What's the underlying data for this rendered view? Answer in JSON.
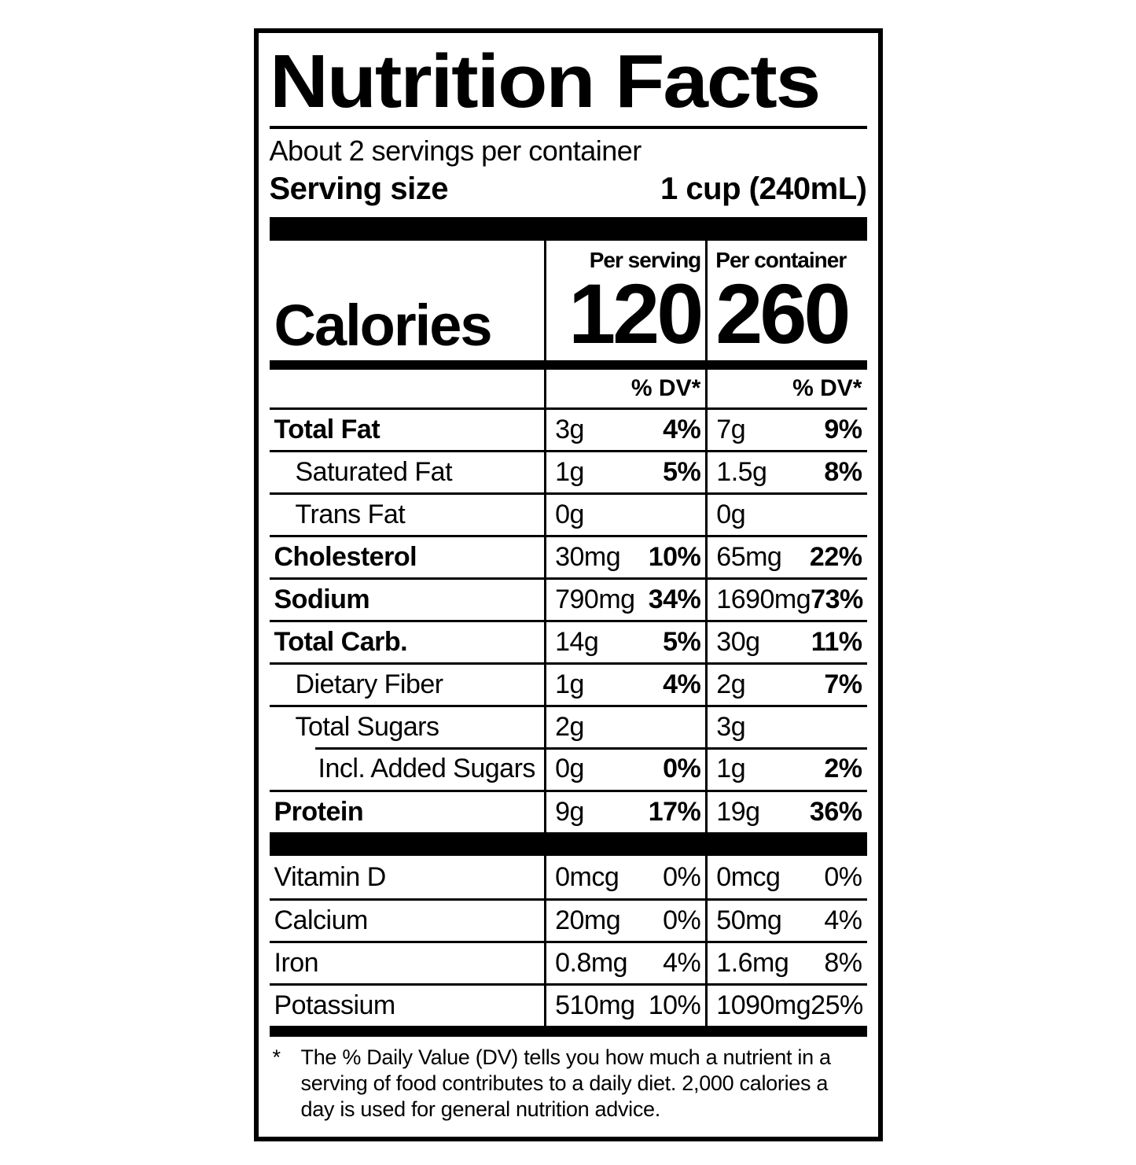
{
  "label": {
    "title": "Nutrition Facts",
    "servings_per_container": "About 2 servings per container",
    "serving_size": {
      "label": "Serving size",
      "value": "1 cup (240mL)"
    },
    "calories": {
      "label": "Calories",
      "per_serving_header": "Per serving",
      "per_container_header": "Per container",
      "per_serving": "120",
      "per_container": "260"
    },
    "dv_header": "% DV*",
    "rows": [
      {
        "name": "Total Fat",
        "serving_amount": "3g",
        "serving_dv": "4%",
        "container_amount": "7g",
        "container_dv": "9%"
      },
      {
        "name": "Saturated Fat",
        "serving_amount": "1g",
        "serving_dv": "5%",
        "container_amount": "1.5g",
        "container_dv": "8%"
      },
      {
        "name": "Trans Fat",
        "serving_amount": "0g",
        "serving_dv": "",
        "container_amount": "0g",
        "container_dv": ""
      },
      {
        "name": "Cholesterol",
        "serving_amount": "30mg",
        "serving_dv": "10%",
        "container_amount": "65mg",
        "container_dv": "22%"
      },
      {
        "name": "Sodium",
        "serving_amount": "790mg",
        "serving_dv": "34%",
        "container_amount": "1690mg",
        "container_dv": "73%"
      },
      {
        "name": "Total Carb.",
        "serving_amount": "14g",
        "serving_dv": "5%",
        "container_amount": "30g",
        "container_dv": "11%"
      },
      {
        "name": "Dietary Fiber",
        "serving_amount": "1g",
        "serving_dv": "4%",
        "container_amount": "2g",
        "container_dv": "7%"
      },
      {
        "name": "Total Sugars",
        "serving_amount": "2g",
        "serving_dv": "",
        "container_amount": "3g",
        "container_dv": ""
      },
      {
        "name": "Incl. Added Sugars",
        "serving_amount": "0g",
        "serving_dv": "0%",
        "container_amount": "1g",
        "container_dv": "2%"
      },
      {
        "name": "Protein",
        "serving_amount": "9g",
        "serving_dv": "17%",
        "container_amount": "19g",
        "container_dv": "36%"
      }
    ],
    "micronutrients": [
      {
        "name": "Vitamin D",
        "serving_amount": "0mcg",
        "serving_dv": "0%",
        "container_amount": "0mcg",
        "container_dv": "0%"
      },
      {
        "name": "Calcium",
        "serving_amount": "20mg",
        "serving_dv": "0%",
        "container_amount": "50mg",
        "container_dv": "4%"
      },
      {
        "name": "Iron",
        "serving_amount": "0.8mg",
        "serving_dv": "4%",
        "container_amount": "1.6mg",
        "container_dv": "8%"
      },
      {
        "name": "Potassium",
        "serving_amount": "510mg",
        "serving_dv": "10%",
        "container_amount": "1090mg",
        "container_dv": "25%"
      }
    ],
    "footnote": {
      "marker": "*",
      "text": "The % Daily Value (DV) tells you how much a nutrient in a serving of food contributes to a daily diet. 2,000 calories a day is used for general nutrition advice."
    },
    "colors": {
      "ink": "#000000",
      "background": "#ffffff"
    }
  }
}
